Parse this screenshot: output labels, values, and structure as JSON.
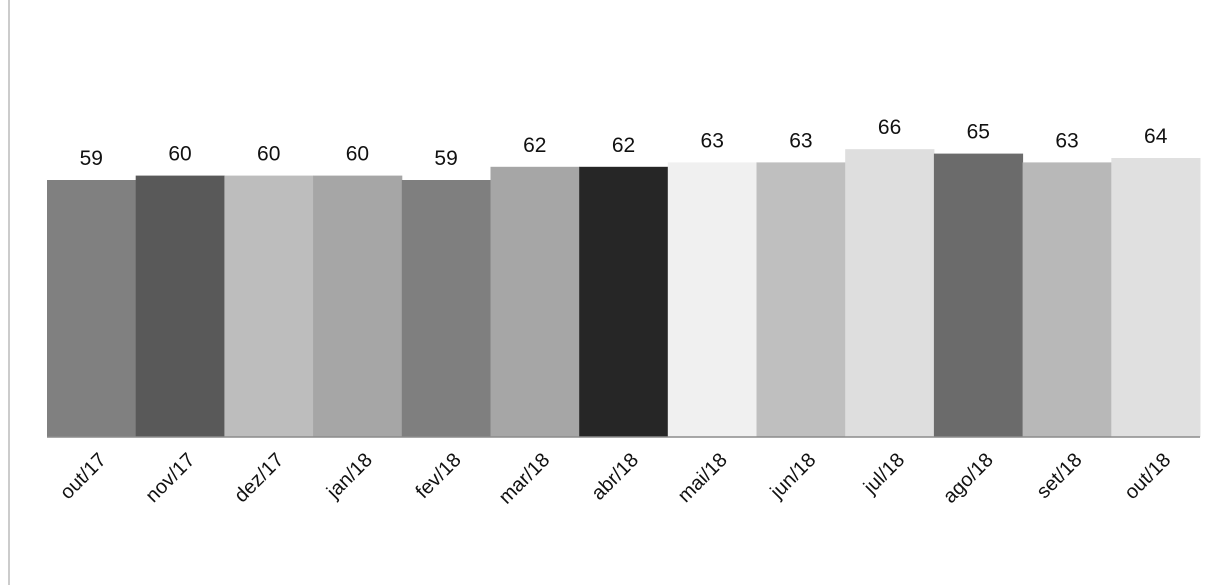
{
  "chart_data": {
    "type": "bar",
    "title": "",
    "xlabel": "",
    "ylabel": "",
    "categories": [
      "out/17",
      "nov/17",
      "dez/17",
      "jan/18",
      "fev/18",
      "mar/18",
      "abr/18",
      "mai/18",
      "jun/18",
      "jul/18",
      "ago/18",
      "set/18",
      "out/18"
    ],
    "values": [
      59,
      60,
      60,
      60,
      59,
      62,
      62,
      63,
      63,
      66,
      65,
      63,
      64
    ],
    "ylim": [
      0,
      66
    ],
    "grid": false,
    "legend": "none",
    "bar_colors": [
      "#808080",
      "#595959",
      "#bdbdbd",
      "#a6a6a6",
      "#7f7f7f",
      "#a6a6a6",
      "#262626",
      "#f0f0f0",
      "#bfbfbf",
      "#dedede",
      "#6b6b6b",
      "#b8b8b8",
      "#e0e0e0"
    ]
  }
}
